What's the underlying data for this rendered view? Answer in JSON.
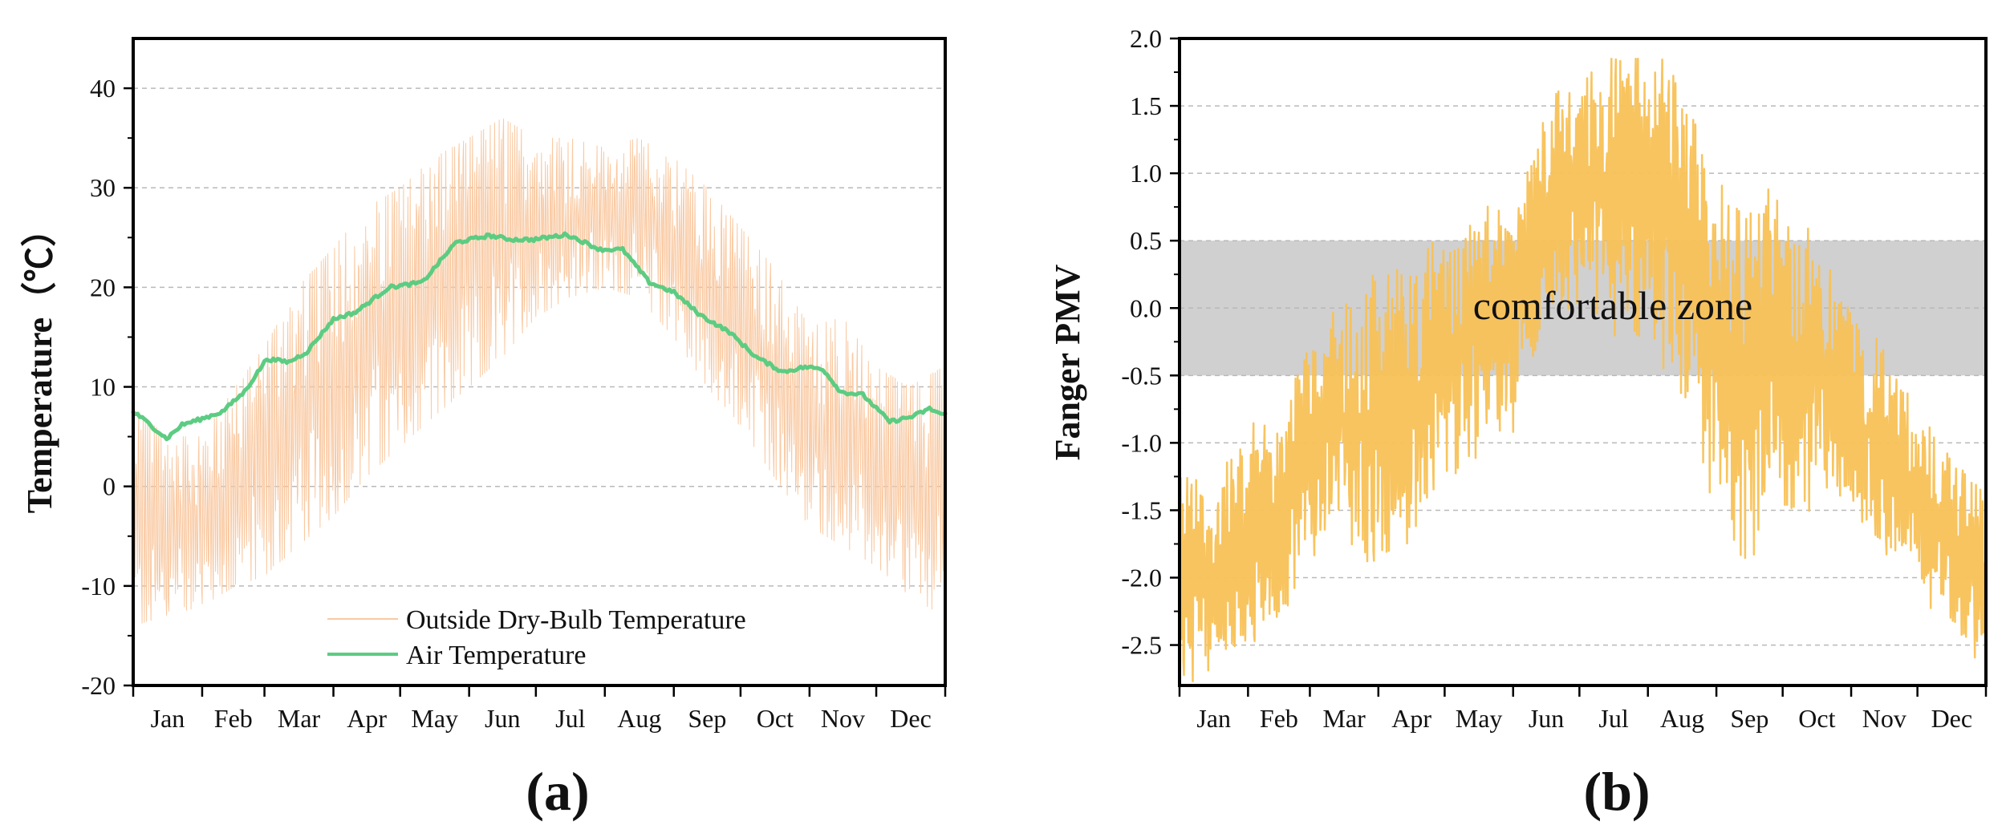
{
  "colors": {
    "dry_bulb": "#f9c9a2",
    "air_temp": "#5ccc82",
    "pmv": "#f8c156",
    "comfort_band": "#c8c8c8",
    "grid": "#b9b9b9",
    "axis": "#000000"
  },
  "chart_data": [
    {
      "type": "line",
      "panel_label": "(a)",
      "xlabel": "",
      "ylabel": "Temperature（℃）",
      "months": [
        "Jan",
        "Feb",
        "Mar",
        "Apr",
        "May",
        "Jun",
        "Jul",
        "Aug",
        "Sep",
        "Oct",
        "Nov",
        "Dec"
      ],
      "ylim": [
        -20,
        45
      ],
      "yticks": [
        -20,
        -10,
        0,
        10,
        20,
        30,
        40
      ],
      "grid": "horizontal dashed",
      "legend": "bottom-center",
      "series": [
        {
          "name": "Outside Dry-Bulb Temperature",
          "style": "thin noisy hourly line",
          "month_min": [
            -14,
            -12,
            -5,
            2,
            8,
            14,
            18,
            18,
            10,
            0,
            -10,
            -12
          ],
          "month_max": [
            8,
            14,
            23,
            28,
            32,
            36,
            35,
            34,
            30,
            25,
            16,
            11
          ],
          "day": [
            0,
            15,
            31,
            46,
            59,
            74,
            90,
            105,
            120,
            135,
            151,
            166,
            181,
            196,
            212,
            227,
            243,
            258,
            273,
            288,
            304,
            319,
            334,
            349,
            364
          ],
          "low": [
            -12,
            -11,
            -10,
            -8,
            -7,
            -4,
            -1,
            3,
            6,
            9,
            12,
            15,
            19,
            21,
            22,
            21,
            17,
            12,
            8,
            3,
            -2,
            -4,
            -6,
            -9,
            -11
          ],
          "high": [
            6,
            3,
            3,
            8,
            12,
            18,
            22,
            26,
            28,
            31,
            33,
            35,
            33,
            33,
            32,
            33,
            31,
            28,
            24,
            20,
            14,
            15,
            10,
            8,
            10
          ]
        },
        {
          "name": "Air Temperature",
          "style": "smooth thick line",
          "day": [
            0,
            6,
            15,
            22,
            31,
            40,
            50,
            60,
            70,
            78,
            90,
            100,
            115,
            130,
            145,
            160,
            170,
            180,
            195,
            210,
            220,
            232,
            243,
            255,
            268,
            280,
            292,
            302,
            310,
            318,
            328,
            340,
            350,
            358,
            364
          ],
          "value": [
            7.5,
            6.5,
            4.8,
            6.2,
            6.8,
            7.5,
            9.5,
            12.8,
            12.5,
            13.5,
            16.8,
            17.5,
            20,
            20.5,
            24.5,
            25.2,
            24.8,
            24.8,
            25.3,
            23.8,
            23.8,
            20.5,
            19.5,
            17.2,
            15.5,
            13,
            11.5,
            12,
            11.8,
            9.5,
            9.2,
            6.5,
            7,
            7.8,
            7.2
          ]
        }
      ]
    },
    {
      "type": "line",
      "panel_label": "(b)",
      "xlabel": "",
      "ylabel": "Fanger PMV",
      "months": [
        "Jan",
        "Feb",
        "Mar",
        "Apr",
        "May",
        "Jun",
        "Jul",
        "Aug",
        "Sep",
        "Oct",
        "Nov",
        "Dec"
      ],
      "ylim": [
        -2.8,
        2.0
      ],
      "yticks": [
        "2.0",
        "1.5",
        "1.0",
        "0.5",
        "0.0",
        "-0.5",
        "-1.0",
        "-1.5",
        "-2.0",
        "-2.5"
      ],
      "ytick_values": [
        2.0,
        1.5,
        1.0,
        0.5,
        0.0,
        -0.5,
        -1.0,
        -1.5,
        -2.0,
        -2.5
      ],
      "grid": "horizontal dashed",
      "band": {
        "from": -0.5,
        "to": 0.5,
        "label": "comfortable zone"
      },
      "series": [
        {
          "name": "",
          "style": "noisy hourly line",
          "month_min": [
            -2.8,
            -2.6,
            -2.0,
            -2.5,
            -1.6,
            -0.8,
            0.0,
            -0.5,
            -1.5,
            -1.2,
            -2.2,
            -2.6
          ],
          "month_max": [
            -1.2,
            -1.0,
            -0.3,
            0.5,
            0.5,
            1.4,
            1.6,
            1.8,
            0.8,
            0.4,
            -0.3,
            -1.2
          ],
          "day": [
            0,
            15,
            31,
            46,
            59,
            74,
            90,
            105,
            120,
            135,
            151,
            166,
            181,
            196,
            212,
            227,
            243,
            258,
            273,
            288,
            304,
            319,
            334,
            349,
            364
          ],
          "low": [
            -2.6,
            -2.4,
            -2.3,
            -2.0,
            -1.6,
            -1.3,
            -1.7,
            -1.3,
            -0.9,
            -0.8,
            -0.6,
            0.2,
            0.3,
            0.2,
            0.2,
            -0.2,
            -1.2,
            -1.3,
            -1.1,
            -1.1,
            -1.2,
            -1.6,
            -1.8,
            -2.2,
            -2.4
          ],
          "high": [
            -1.4,
            -1.6,
            -1.2,
            -1.0,
            -0.5,
            -0.3,
            -0.2,
            0.0,
            0.2,
            0.4,
            0.4,
            1.3,
            1.4,
            1.5,
            1.7,
            1.2,
            0.5,
            0.5,
            0.3,
            0.2,
            -0.3,
            -0.6,
            -1.0,
            -1.3,
            -1.6
          ]
        }
      ]
    }
  ],
  "legend": {
    "items": [
      "Outside Dry-Bulb Temperature",
      "Air Temperature"
    ]
  }
}
